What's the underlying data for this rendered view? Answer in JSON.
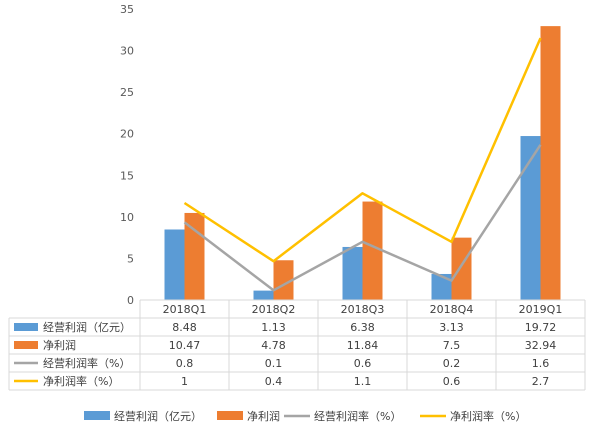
{
  "chart_data": {
    "type": "bar",
    "categories": [
      "2018Q1",
      "2018Q2",
      "2018Q3",
      "2018Q4",
      "2019Q1"
    ],
    "ylim": [
      0,
      35
    ],
    "yticks": [
      0,
      5,
      10,
      15,
      20,
      25,
      30,
      35
    ],
    "grid": false,
    "legend_position": "bottom",
    "secondary_axis": {
      "ylim": [
        0,
        3.0
      ],
      "visible": false
    },
    "series": [
      {
        "name": "经营利润（亿元）",
        "type": "bar",
        "axis": "primary",
        "color": "#5b9bd5",
        "values": [
          8.48,
          1.13,
          6.38,
          3.13,
          19.72
        ],
        "table_values": [
          "8.48",
          "1.13",
          "6.38",
          "3.13",
          "19.72"
        ]
      },
      {
        "name": "净利润",
        "type": "bar",
        "axis": "primary",
        "color": "#ed7d31",
        "values": [
          10.47,
          4.78,
          11.84,
          7.5,
          32.94
        ],
        "table_values": [
          "10.47",
          "4.78",
          "11.84",
          "7.5",
          "32.94"
        ]
      },
      {
        "name": "经营利润率（%）",
        "type": "line",
        "axis": "secondary",
        "color": "#a5a5a5",
        "values": [
          0.8,
          0.1,
          0.6,
          0.2,
          1.6
        ],
        "table_values": [
          "0.8",
          "0.1",
          "0.6",
          "0.2",
          "1.6"
        ]
      },
      {
        "name": "净利润率（%）",
        "type": "line",
        "axis": "secondary",
        "color": "#ffc000",
        "values": [
          1,
          0.4,
          1.1,
          0.6,
          2.7
        ],
        "table_values": [
          "1",
          "0.4",
          "1.1",
          "0.6",
          "2.7"
        ]
      }
    ]
  }
}
